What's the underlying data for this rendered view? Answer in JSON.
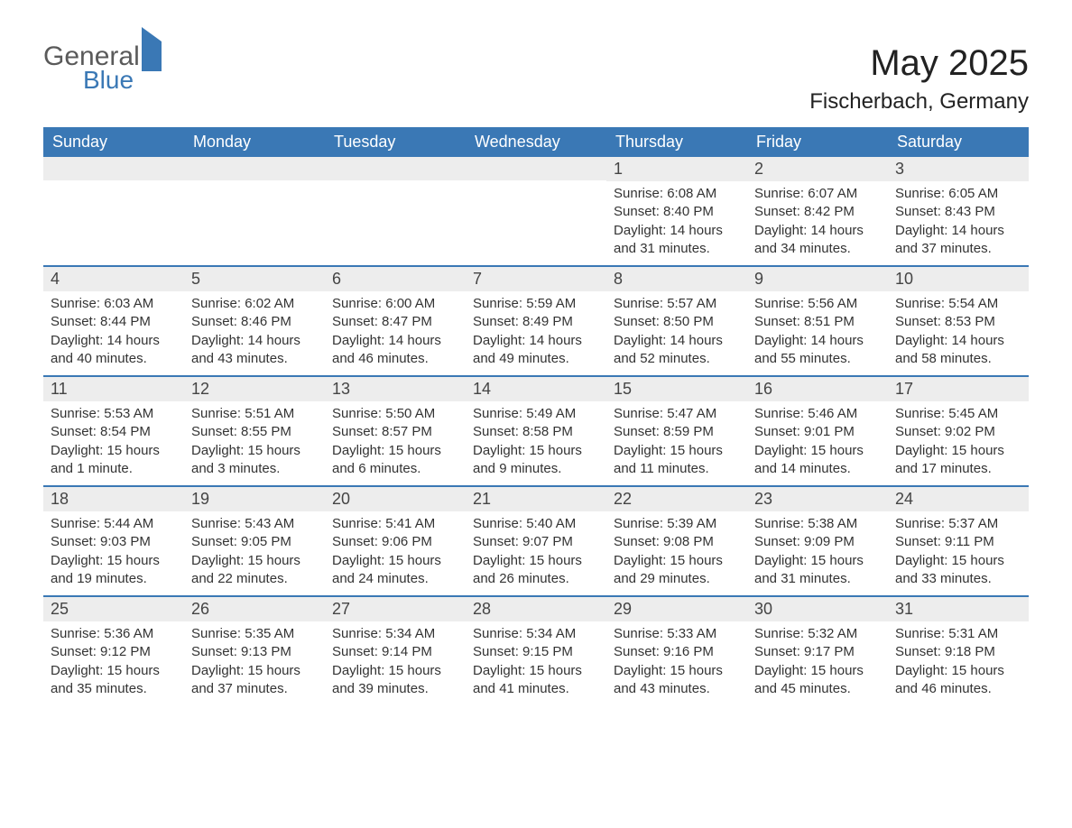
{
  "logo": {
    "word1": "General",
    "word2": "Blue"
  },
  "header": {
    "title": "May 2025",
    "location": "Fischerbach, Germany"
  },
  "colors": {
    "header_bg": "#3a78b5",
    "header_text": "#ffffff",
    "daynum_bg": "#ededed",
    "border": "#3a78b5",
    "body_text": "#333333",
    "background": "#ffffff"
  },
  "fonts": {
    "title_size_pt": 30,
    "location_size_pt": 18,
    "weekday_size_pt": 14,
    "body_size_pt": 11
  },
  "weekdays": [
    "Sunday",
    "Monday",
    "Tuesday",
    "Wednesday",
    "Thursday",
    "Friday",
    "Saturday"
  ],
  "weeks": [
    [
      {
        "empty": true
      },
      {
        "empty": true
      },
      {
        "empty": true
      },
      {
        "empty": true
      },
      {
        "num": "1",
        "sunrise": "Sunrise: 6:08 AM",
        "sunset": "Sunset: 8:40 PM",
        "dl1": "Daylight: 14 hours",
        "dl2": "and 31 minutes."
      },
      {
        "num": "2",
        "sunrise": "Sunrise: 6:07 AM",
        "sunset": "Sunset: 8:42 PM",
        "dl1": "Daylight: 14 hours",
        "dl2": "and 34 minutes."
      },
      {
        "num": "3",
        "sunrise": "Sunrise: 6:05 AM",
        "sunset": "Sunset: 8:43 PM",
        "dl1": "Daylight: 14 hours",
        "dl2": "and 37 minutes."
      }
    ],
    [
      {
        "num": "4",
        "sunrise": "Sunrise: 6:03 AM",
        "sunset": "Sunset: 8:44 PM",
        "dl1": "Daylight: 14 hours",
        "dl2": "and 40 minutes."
      },
      {
        "num": "5",
        "sunrise": "Sunrise: 6:02 AM",
        "sunset": "Sunset: 8:46 PM",
        "dl1": "Daylight: 14 hours",
        "dl2": "and 43 minutes."
      },
      {
        "num": "6",
        "sunrise": "Sunrise: 6:00 AM",
        "sunset": "Sunset: 8:47 PM",
        "dl1": "Daylight: 14 hours",
        "dl2": "and 46 minutes."
      },
      {
        "num": "7",
        "sunrise": "Sunrise: 5:59 AM",
        "sunset": "Sunset: 8:49 PM",
        "dl1": "Daylight: 14 hours",
        "dl2": "and 49 minutes."
      },
      {
        "num": "8",
        "sunrise": "Sunrise: 5:57 AM",
        "sunset": "Sunset: 8:50 PM",
        "dl1": "Daylight: 14 hours",
        "dl2": "and 52 minutes."
      },
      {
        "num": "9",
        "sunrise": "Sunrise: 5:56 AM",
        "sunset": "Sunset: 8:51 PM",
        "dl1": "Daylight: 14 hours",
        "dl2": "and 55 minutes."
      },
      {
        "num": "10",
        "sunrise": "Sunrise: 5:54 AM",
        "sunset": "Sunset: 8:53 PM",
        "dl1": "Daylight: 14 hours",
        "dl2": "and 58 minutes."
      }
    ],
    [
      {
        "num": "11",
        "sunrise": "Sunrise: 5:53 AM",
        "sunset": "Sunset: 8:54 PM",
        "dl1": "Daylight: 15 hours",
        "dl2": "and 1 minute."
      },
      {
        "num": "12",
        "sunrise": "Sunrise: 5:51 AM",
        "sunset": "Sunset: 8:55 PM",
        "dl1": "Daylight: 15 hours",
        "dl2": "and 3 minutes."
      },
      {
        "num": "13",
        "sunrise": "Sunrise: 5:50 AM",
        "sunset": "Sunset: 8:57 PM",
        "dl1": "Daylight: 15 hours",
        "dl2": "and 6 minutes."
      },
      {
        "num": "14",
        "sunrise": "Sunrise: 5:49 AM",
        "sunset": "Sunset: 8:58 PM",
        "dl1": "Daylight: 15 hours",
        "dl2": "and 9 minutes."
      },
      {
        "num": "15",
        "sunrise": "Sunrise: 5:47 AM",
        "sunset": "Sunset: 8:59 PM",
        "dl1": "Daylight: 15 hours",
        "dl2": "and 11 minutes."
      },
      {
        "num": "16",
        "sunrise": "Sunrise: 5:46 AM",
        "sunset": "Sunset: 9:01 PM",
        "dl1": "Daylight: 15 hours",
        "dl2": "and 14 minutes."
      },
      {
        "num": "17",
        "sunrise": "Sunrise: 5:45 AM",
        "sunset": "Sunset: 9:02 PM",
        "dl1": "Daylight: 15 hours",
        "dl2": "and 17 minutes."
      }
    ],
    [
      {
        "num": "18",
        "sunrise": "Sunrise: 5:44 AM",
        "sunset": "Sunset: 9:03 PM",
        "dl1": "Daylight: 15 hours",
        "dl2": "and 19 minutes."
      },
      {
        "num": "19",
        "sunrise": "Sunrise: 5:43 AM",
        "sunset": "Sunset: 9:05 PM",
        "dl1": "Daylight: 15 hours",
        "dl2": "and 22 minutes."
      },
      {
        "num": "20",
        "sunrise": "Sunrise: 5:41 AM",
        "sunset": "Sunset: 9:06 PM",
        "dl1": "Daylight: 15 hours",
        "dl2": "and 24 minutes."
      },
      {
        "num": "21",
        "sunrise": "Sunrise: 5:40 AM",
        "sunset": "Sunset: 9:07 PM",
        "dl1": "Daylight: 15 hours",
        "dl2": "and 26 minutes."
      },
      {
        "num": "22",
        "sunrise": "Sunrise: 5:39 AM",
        "sunset": "Sunset: 9:08 PM",
        "dl1": "Daylight: 15 hours",
        "dl2": "and 29 minutes."
      },
      {
        "num": "23",
        "sunrise": "Sunrise: 5:38 AM",
        "sunset": "Sunset: 9:09 PM",
        "dl1": "Daylight: 15 hours",
        "dl2": "and 31 minutes."
      },
      {
        "num": "24",
        "sunrise": "Sunrise: 5:37 AM",
        "sunset": "Sunset: 9:11 PM",
        "dl1": "Daylight: 15 hours",
        "dl2": "and 33 minutes."
      }
    ],
    [
      {
        "num": "25",
        "sunrise": "Sunrise: 5:36 AM",
        "sunset": "Sunset: 9:12 PM",
        "dl1": "Daylight: 15 hours",
        "dl2": "and 35 minutes."
      },
      {
        "num": "26",
        "sunrise": "Sunrise: 5:35 AM",
        "sunset": "Sunset: 9:13 PM",
        "dl1": "Daylight: 15 hours",
        "dl2": "and 37 minutes."
      },
      {
        "num": "27",
        "sunrise": "Sunrise: 5:34 AM",
        "sunset": "Sunset: 9:14 PM",
        "dl1": "Daylight: 15 hours",
        "dl2": "and 39 minutes."
      },
      {
        "num": "28",
        "sunrise": "Sunrise: 5:34 AM",
        "sunset": "Sunset: 9:15 PM",
        "dl1": "Daylight: 15 hours",
        "dl2": "and 41 minutes."
      },
      {
        "num": "29",
        "sunrise": "Sunrise: 5:33 AM",
        "sunset": "Sunset: 9:16 PM",
        "dl1": "Daylight: 15 hours",
        "dl2": "and 43 minutes."
      },
      {
        "num": "30",
        "sunrise": "Sunrise: 5:32 AM",
        "sunset": "Sunset: 9:17 PM",
        "dl1": "Daylight: 15 hours",
        "dl2": "and 45 minutes."
      },
      {
        "num": "31",
        "sunrise": "Sunrise: 5:31 AM",
        "sunset": "Sunset: 9:18 PM",
        "dl1": "Daylight: 15 hours",
        "dl2": "and 46 minutes."
      }
    ]
  ]
}
